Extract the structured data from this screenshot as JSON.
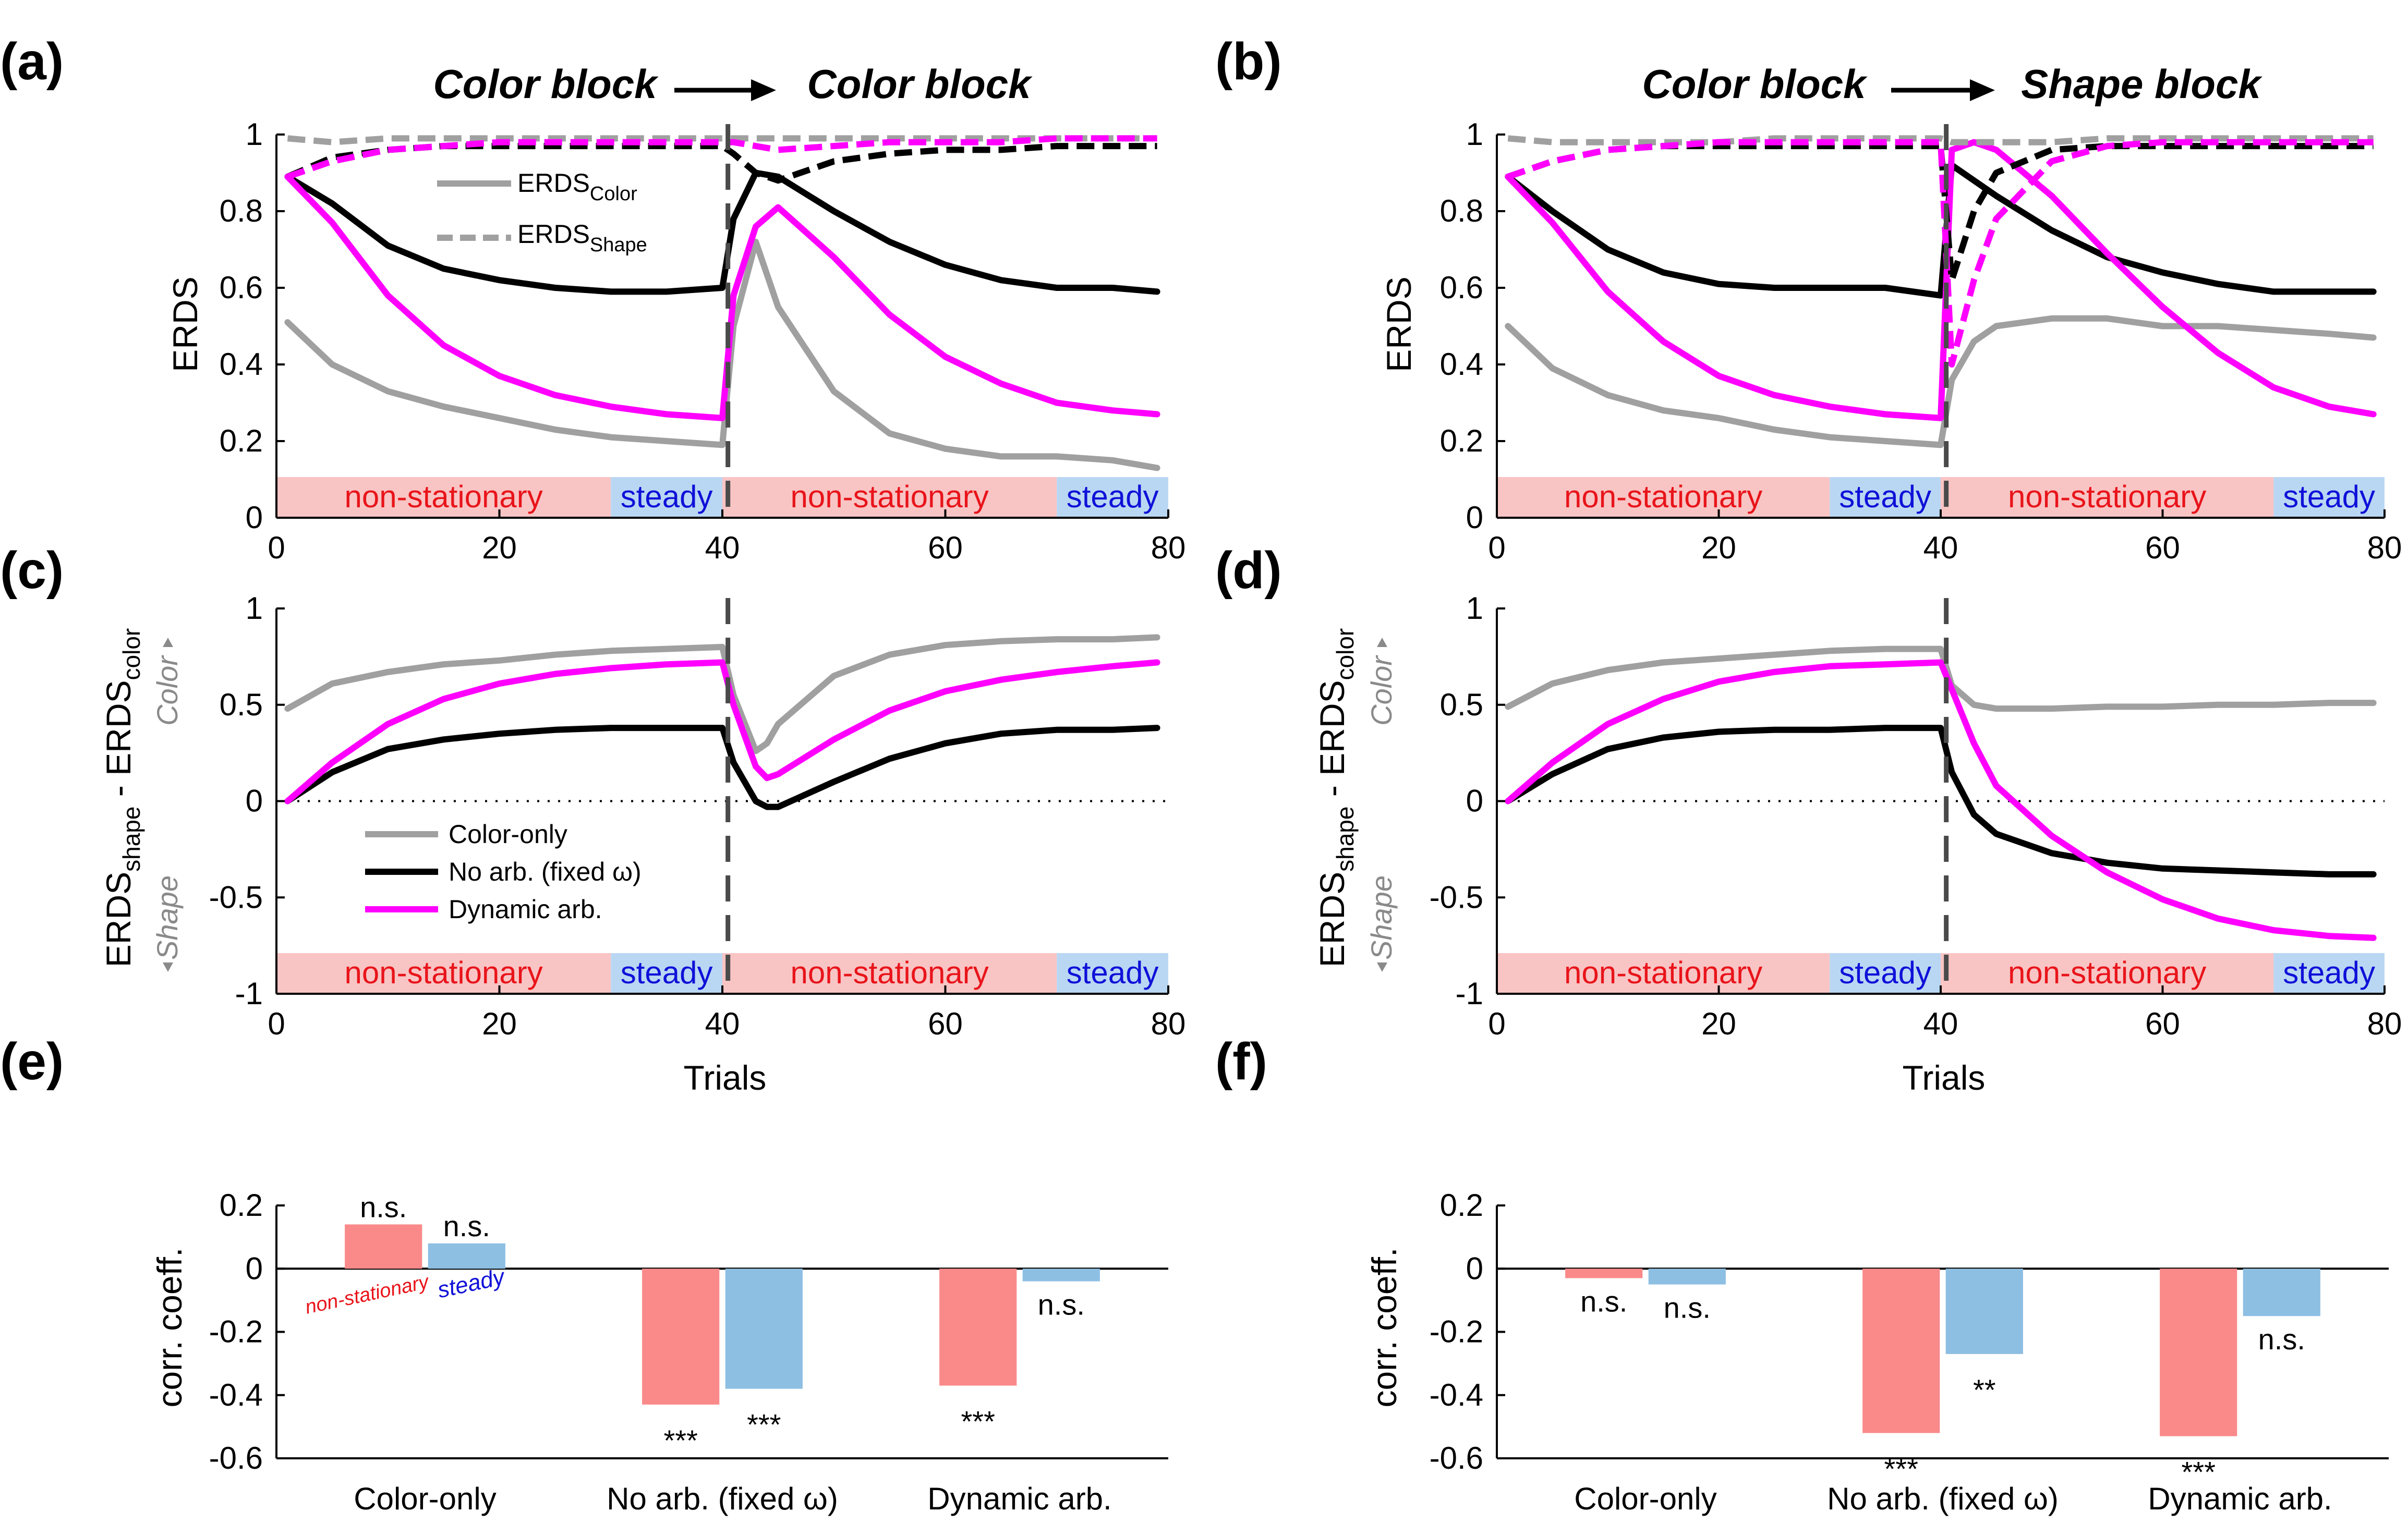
{
  "panel_labels": {
    "a": "(a)",
    "b": "(b)",
    "c": "(c)",
    "d": "(d)",
    "e": "(e)",
    "f": "(f)"
  },
  "block_titles": {
    "a": {
      "left": "Color block",
      "right": "Color block"
    },
    "b": {
      "left": "Color block",
      "right": "Shape block"
    }
  },
  "colors": {
    "color_only": "#a0a0a0",
    "no_arb": "#000000",
    "dynamic": "#ff00ff",
    "dynamic_light": "#f6a3f6",
    "nonstationary_band": "#f9c4c4",
    "steady_band": "#b9d7f3",
    "nonstationary_text": "#e8141a",
    "steady_text": "#1010d8",
    "bar_nonstationary": "#fa8a8a",
    "bar_steady": "#8dbfe3"
  },
  "bands": {
    "nonstationary": "non-stationary",
    "steady": "steady"
  },
  "axes": {
    "erds_ylabel": "ERDS",
    "diff_ylabel_parts": [
      "ERDS",
      "shape",
      " - ERDS",
      "color"
    ],
    "side_color": "Color",
    "side_shape": "Shape",
    "trials_xlabel": "Trials",
    "corr_ylabel": "corr. coeff.",
    "erds_yticks": [
      "0",
      "0.2",
      "0.4",
      "0.6",
      "0.8",
      "1"
    ],
    "diff_yticks": [
      "-1",
      "-0.5",
      "0",
      "0.5",
      "1"
    ],
    "corr_yticks": [
      "-0.6",
      "-0.4",
      "-0.2",
      "0",
      "0.2"
    ],
    "xticks": [
      "0",
      "20",
      "40",
      "60",
      "80"
    ]
  },
  "legend_erds": {
    "color_base": "ERDS",
    "color_sub": "Color",
    "shape_base": "ERDS",
    "shape_sub": "Shape"
  },
  "legend_models": {
    "color_only": "Color-only",
    "no_arb": "No arb. (fixed ω)",
    "dynamic": "Dynamic arb."
  },
  "bar_annotations": {
    "nonstationary": "non-stationary",
    "steady": "steady"
  },
  "chart_data": [
    {
      "id": "a",
      "type": "line",
      "title": "Color block → Color block",
      "xlabel": "",
      "ylabel": "ERDS",
      "xlim": [
        0,
        80
      ],
      "ylim": [
        0,
        1
      ],
      "x": [
        1,
        5,
        10,
        15,
        20,
        25,
        30,
        35,
        40,
        41,
        43,
        45,
        50,
        55,
        60,
        65,
        70,
        75,
        79
      ],
      "series": [
        {
          "name": "Color-only ERDS_Color",
          "style": "solid",
          "values": [
            0.51,
            0.4,
            0.33,
            0.29,
            0.26,
            0.23,
            0.21,
            0.2,
            0.19,
            0.5,
            0.72,
            0.55,
            0.33,
            0.22,
            0.18,
            0.16,
            0.16,
            0.15,
            0.13
          ]
        },
        {
          "name": "No arb. ERDS_Color",
          "style": "solid",
          "values": [
            0.89,
            0.82,
            0.71,
            0.65,
            0.62,
            0.6,
            0.59,
            0.59,
            0.6,
            0.78,
            0.9,
            0.89,
            0.8,
            0.72,
            0.66,
            0.62,
            0.6,
            0.6,
            0.59
          ]
        },
        {
          "name": "Dynamic arb. ERDS_Color",
          "style": "solid",
          "values": [
            0.89,
            0.77,
            0.58,
            0.45,
            0.37,
            0.32,
            0.29,
            0.27,
            0.26,
            0.58,
            0.76,
            0.81,
            0.68,
            0.53,
            0.42,
            0.35,
            0.3,
            0.28,
            0.27
          ]
        },
        {
          "name": "Color-only ERDS_Shape",
          "style": "dashed",
          "values": [
            0.99,
            0.98,
            0.99,
            0.99,
            0.99,
            0.99,
            0.99,
            0.99,
            0.99,
            0.99,
            0.99,
            0.99,
            0.99,
            0.99,
            0.99,
            0.99,
            0.99,
            0.99,
            0.99
          ]
        },
        {
          "name": "No arb. ERDS_Shape",
          "style": "dashed",
          "values": [
            0.89,
            0.94,
            0.96,
            0.97,
            0.97,
            0.97,
            0.97,
            0.97,
            0.97,
            0.95,
            0.9,
            0.88,
            0.93,
            0.95,
            0.96,
            0.96,
            0.97,
            0.97,
            0.97
          ]
        },
        {
          "name": "Dynamic arb. ERDS_Shape",
          "style": "dashed",
          "values": [
            0.89,
            0.93,
            0.96,
            0.97,
            0.98,
            0.98,
            0.98,
            0.98,
            0.98,
            0.98,
            0.97,
            0.96,
            0.97,
            0.98,
            0.98,
            0.98,
            0.99,
            0.99,
            0.99
          ]
        }
      ],
      "bands": [
        {
          "label": "non-stationary",
          "range": [
            0,
            30
          ]
        },
        {
          "label": "steady",
          "range": [
            30,
            40
          ]
        },
        {
          "label": "non-stationary",
          "range": [
            40,
            70
          ]
        },
        {
          "label": "steady",
          "range": [
            70,
            80
          ]
        }
      ],
      "vline": 40.5
    },
    {
      "id": "b",
      "type": "line",
      "title": "Color block → Shape block",
      "xlabel": "",
      "ylabel": "ERDS",
      "xlim": [
        0,
        80
      ],
      "ylim": [
        0,
        1
      ],
      "x": [
        1,
        5,
        10,
        15,
        20,
        25,
        30,
        35,
        40,
        41,
        43,
        45,
        50,
        55,
        60,
        65,
        70,
        75,
        79
      ],
      "series": [
        {
          "name": "Color-only ERDS_Color",
          "style": "solid",
          "values": [
            0.5,
            0.39,
            0.32,
            0.28,
            0.26,
            0.23,
            0.21,
            0.2,
            0.19,
            0.36,
            0.46,
            0.5,
            0.52,
            0.52,
            0.5,
            0.5,
            0.49,
            0.48,
            0.47
          ]
        },
        {
          "name": "No arb. ERDS_Color",
          "style": "solid",
          "values": [
            0.89,
            0.8,
            0.7,
            0.64,
            0.61,
            0.6,
            0.6,
            0.6,
            0.58,
            0.92,
            0.88,
            0.84,
            0.75,
            0.68,
            0.64,
            0.61,
            0.59,
            0.59,
            0.59
          ]
        },
        {
          "name": "Dynamic arb. ERDS_Color",
          "style": "solid",
          "values": [
            0.89,
            0.77,
            0.59,
            0.46,
            0.37,
            0.32,
            0.29,
            0.27,
            0.26,
            0.96,
            0.98,
            0.96,
            0.84,
            0.69,
            0.55,
            0.43,
            0.34,
            0.29,
            0.27
          ]
        },
        {
          "name": "Color-only ERDS_Shape",
          "style": "dashed",
          "values": [
            0.99,
            0.98,
            0.98,
            0.98,
            0.98,
            0.99,
            0.99,
            0.99,
            0.99,
            0.98,
            0.98,
            0.98,
            0.98,
            0.99,
            0.99,
            0.99,
            0.99,
            0.99,
            0.99
          ]
        },
        {
          "name": "No arb. ERDS_Shape",
          "style": "dashed",
          "values": [
            0.89,
            0.93,
            0.96,
            0.97,
            0.97,
            0.97,
            0.97,
            0.97,
            0.97,
            0.62,
            0.8,
            0.9,
            0.96,
            0.97,
            0.97,
            0.97,
            0.97,
            0.97,
            0.97
          ]
        },
        {
          "name": "Dynamic arb. ERDS_Shape",
          "style": "dashed",
          "values": [
            0.89,
            0.93,
            0.96,
            0.97,
            0.98,
            0.98,
            0.98,
            0.98,
            0.98,
            0.4,
            0.62,
            0.78,
            0.93,
            0.97,
            0.98,
            0.98,
            0.98,
            0.98,
            0.98
          ]
        }
      ],
      "bands": [
        {
          "label": "non-stationary",
          "range": [
            0,
            30
          ]
        },
        {
          "label": "steady",
          "range": [
            30,
            40
          ]
        },
        {
          "label": "non-stationary",
          "range": [
            40,
            70
          ]
        },
        {
          "label": "steady",
          "range": [
            70,
            80
          ]
        }
      ],
      "vline": 40.5
    },
    {
      "id": "c",
      "type": "line",
      "title": "",
      "xlabel": "Trials",
      "ylabel": "ERDS_shape - ERDS_color",
      "xlim": [
        0,
        80
      ],
      "ylim": [
        -1,
        1
      ],
      "x": [
        1,
        5,
        10,
        15,
        20,
        25,
        30,
        35,
        40,
        41,
        43,
        44,
        45,
        50,
        55,
        60,
        65,
        70,
        75,
        79
      ],
      "series": [
        {
          "name": "Color-only",
          "values": [
            0.48,
            0.61,
            0.67,
            0.71,
            0.73,
            0.76,
            0.78,
            0.79,
            0.8,
            0.55,
            0.26,
            0.3,
            0.4,
            0.65,
            0.76,
            0.81,
            0.83,
            0.84,
            0.84,
            0.85
          ]
        },
        {
          "name": "No arb. (fixed ω)",
          "values": [
            0.0,
            0.15,
            0.27,
            0.32,
            0.35,
            0.37,
            0.38,
            0.38,
            0.38,
            0.2,
            0.0,
            -0.03,
            -0.03,
            0.1,
            0.22,
            0.3,
            0.35,
            0.37,
            0.37,
            0.38
          ]
        },
        {
          "name": "Dynamic arb.",
          "values": [
            0.0,
            0.2,
            0.4,
            0.53,
            0.61,
            0.66,
            0.69,
            0.71,
            0.72,
            0.5,
            0.18,
            0.12,
            0.14,
            0.32,
            0.47,
            0.57,
            0.63,
            0.67,
            0.7,
            0.72
          ]
        }
      ],
      "bands": [
        {
          "label": "non-stationary",
          "range": [
            0,
            30
          ]
        },
        {
          "label": "steady",
          "range": [
            30,
            40
          ]
        },
        {
          "label": "non-stationary",
          "range": [
            40,
            70
          ]
        },
        {
          "label": "steady",
          "range": [
            70,
            80
          ]
        }
      ],
      "vline": 40.5,
      "hline": 0
    },
    {
      "id": "d",
      "type": "line",
      "title": "",
      "xlabel": "Trials",
      "ylabel": "ERDS_shape - ERDS_color",
      "xlim": [
        0,
        80
      ],
      "ylim": [
        -1,
        1
      ],
      "x": [
        1,
        5,
        10,
        15,
        20,
        25,
        30,
        35,
        40,
        41,
        43,
        45,
        50,
        55,
        60,
        65,
        70,
        75,
        79
      ],
      "series": [
        {
          "name": "Color-only",
          "values": [
            0.49,
            0.61,
            0.68,
            0.72,
            0.74,
            0.76,
            0.78,
            0.79,
            0.79,
            0.6,
            0.5,
            0.48,
            0.48,
            0.49,
            0.49,
            0.5,
            0.5,
            0.51,
            0.51
          ]
        },
        {
          "name": "No arb. (fixed ω)",
          "values": [
            0.0,
            0.14,
            0.27,
            0.33,
            0.36,
            0.37,
            0.37,
            0.38,
            0.38,
            0.15,
            -0.07,
            -0.17,
            -0.27,
            -0.32,
            -0.35,
            -0.36,
            -0.37,
            -0.38,
            -0.38
          ]
        },
        {
          "name": "Dynamic arb.",
          "values": [
            0.0,
            0.2,
            0.4,
            0.53,
            0.62,
            0.67,
            0.7,
            0.71,
            0.72,
            0.58,
            0.3,
            0.08,
            -0.18,
            -0.37,
            -0.51,
            -0.61,
            -0.67,
            -0.7,
            -0.71
          ]
        }
      ],
      "bands": [
        {
          "label": "non-stationary",
          "range": [
            0,
            30
          ]
        },
        {
          "label": "steady",
          "range": [
            30,
            40
          ]
        },
        {
          "label": "non-stationary",
          "range": [
            40,
            70
          ]
        },
        {
          "label": "steady",
          "range": [
            70,
            80
          ]
        }
      ],
      "vline": 40.5,
      "hline": 0
    },
    {
      "id": "e",
      "type": "bar",
      "ylabel": "corr. coeff.",
      "ylim": [
        -0.6,
        0.2
      ],
      "categories": [
        "Color-only",
        "No arb. (fixed ω)",
        "Dynamic arb."
      ],
      "series": [
        {
          "name": "non-stationary",
          "values": [
            0.14,
            -0.43,
            -0.37
          ],
          "sig": [
            "n.s.",
            "***",
            "***"
          ]
        },
        {
          "name": "steady",
          "values": [
            0.08,
            -0.38,
            -0.04
          ],
          "sig": [
            "n.s.",
            "***",
            "n.s."
          ]
        }
      ]
    },
    {
      "id": "f",
      "type": "bar",
      "ylabel": "corr. coeff.",
      "ylim": [
        -0.6,
        0.2
      ],
      "categories": [
        "Color-only",
        "No arb. (fixed ω)",
        "Dynamic arb."
      ],
      "series": [
        {
          "name": "non-stationary",
          "values": [
            -0.03,
            -0.52,
            -0.53
          ],
          "sig": [
            "n.s.",
            "***",
            "***"
          ]
        },
        {
          "name": "steady",
          "values": [
            -0.05,
            -0.27,
            -0.15
          ],
          "sig": [
            "n.s.",
            "**",
            "n.s."
          ]
        }
      ]
    }
  ]
}
